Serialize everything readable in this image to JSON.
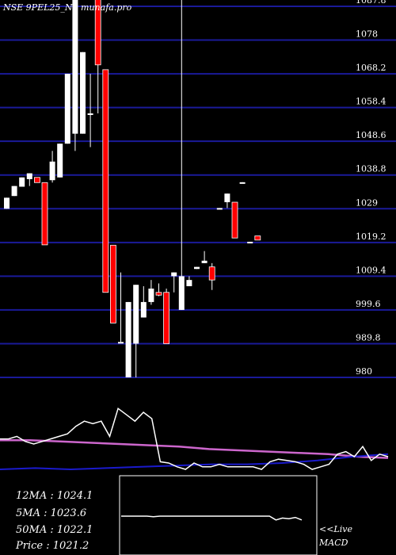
{
  "chart_data": {
    "type": "candlestick",
    "title": "NSE 9PEL25_N0 munafa.pro",
    "y_ticks": [
      "1087.8",
      "1078",
      "1068.2",
      "1058.4",
      "1048.6",
      "1038.8",
      "1029",
      "1019.2",
      "1009.4",
      "999.6",
      "989.8",
      "980"
    ],
    "ylim": [
      980,
      1087.8
    ],
    "grid": true,
    "candles": [
      {
        "o": 1029.0,
        "c": 1032.2,
        "h": 1032.2,
        "l": 1029.0
      },
      {
        "o": 1032.7,
        "c": 1035.6,
        "h": 1035.6,
        "l": 1032.7
      },
      {
        "o": 1035.4,
        "c": 1038.1,
        "h": 1038.1,
        "l": 1035.4
      },
      {
        "o": 1037.6,
        "c": 1039.3,
        "h": 1039.3,
        "l": 1035.6
      },
      {
        "o": 1038.1,
        "c": 1036.6,
        "h": 1038.1,
        "l": 1036.6
      },
      {
        "o": 1036.6,
        "c": 1018.5,
        "h": 1036.6,
        "l": 1018.5
      },
      {
        "o": 1037.3,
        "c": 1042.7,
        "h": 1045.8,
        "l": 1036.6
      },
      {
        "o": 1038.1,
        "c": 1047.9,
        "h": 1047.9,
        "l": 1038.1
      },
      {
        "o": 1047.9,
        "c": 1068.2,
        "h": 1068.2,
        "l": 1047.9
      },
      {
        "o": 1050.8,
        "c": 1090.0,
        "h": 1090.0,
        "l": 1045.8
      },
      {
        "o": 1050.8,
        "c": 1074.5,
        "h": 1074.5,
        "l": 1050.8
      },
      {
        "o": 1056.7,
        "c": 1056.7,
        "h": 1068.2,
        "l": 1046.9
      },
      {
        "o": 1090.0,
        "c": 1070.8,
        "h": 1090.0,
        "l": 1056.7
      },
      {
        "o": 1069.4,
        "c": 1004.7,
        "h": 1069.4,
        "l": 1004.7
      },
      {
        "o": 1018.4,
        "c": 995.8,
        "h": 1018.4,
        "l": 995.8
      },
      {
        "o": 990.3,
        "c": 990.3,
        "h": 1010.5,
        "l": 990.3
      },
      {
        "o": 980.0,
        "c": 1001.9,
        "h": 1001.9,
        "l": 980.0
      },
      {
        "o": 989.8,
        "c": 1006.9,
        "h": 1006.9,
        "l": 980.0
      },
      {
        "o": 997.4,
        "c": 1001.9,
        "h": 1006.5,
        "l": 997.4
      },
      {
        "o": 1001.9,
        "c": 1005.8,
        "h": 1008.3,
        "l": 1001.1
      },
      {
        "o": 1004.7,
        "c": 1003.9,
        "h": 1007.3,
        "l": 1003.6
      },
      {
        "o": 1004.7,
        "c": 989.8,
        "h": 1005.8,
        "l": 989.8
      },
      {
        "o": 1009.4,
        "c": 1010.5,
        "h": 1010.5,
        "l": 1004.7
      },
      {
        "o": 999.6,
        "c": 1009.4,
        "h": 1090.0,
        "l": 999.6
      },
      {
        "o": 1006.5,
        "c": 1008.3,
        "h": 1009.4,
        "l": 1006.5
      },
      {
        "o": 1011.5,
        "c": 1012.1,
        "h": 1012.1,
        "l": 1011.5
      },
      {
        "o": 1013.2,
        "c": 1013.9,
        "h": 1016.7,
        "l": 1013.2
      },
      {
        "o": 1012.1,
        "c": 1008.3,
        "h": 1013.2,
        "l": 1005.4
      },
      {
        "o": 1029.0,
        "c": 1029.2,
        "h": 1029.2,
        "l": 1029.0
      },
      {
        "o": 1030.9,
        "c": 1033.4,
        "h": 1033.4,
        "l": 1029.2
      },
      {
        "o": 1030.9,
        "c": 1020.5,
        "h": 1030.9,
        "l": 1020.5
      },
      {
        "o": 1036.6,
        "c": 1036.7,
        "h": 1036.7,
        "l": 1036.6
      },
      {
        "o": 1019.2,
        "c": 1019.4,
        "h": 1019.4,
        "l": 1019.2
      },
      {
        "o": 1021.1,
        "c": 1019.9,
        "h": 1021.1,
        "l": 1019.9
      }
    ],
    "legend": [
      {
        "label": "12MA",
        "value": "1024.1"
      },
      {
        "label": "5MA",
        "value": "1023.6"
      },
      {
        "label": "50MA",
        "value": "1022.1"
      },
      {
        "label": "Price",
        "value": "1021.2"
      }
    ],
    "macd_label": "<<Live MACD",
    "indicator_white": [
      0.24,
      0.24,
      0.26,
      0.22,
      0.2,
      0.22,
      0.24,
      0.26,
      0.28,
      0.34,
      0.38,
      0.36,
      0.38,
      0.26,
      0.48,
      0.43,
      0.38,
      0.45,
      0.4,
      0.06,
      0.05,
      0.02,
      0.0,
      0.05,
      0.02,
      0.02,
      0.04,
      0.02,
      0.02,
      0.02,
      0.02,
      0.0,
      0.06,
      0.08,
      0.07,
      0.06,
      0.04,
      0.0,
      0.02,
      0.04,
      0.12,
      0.14,
      0.1,
      0.18,
      0.07,
      0.12,
      0.1
    ],
    "indicator_magenta": [
      0.23,
      0.23,
      0.22,
      0.21,
      0.2,
      0.19,
      0.18,
      0.16,
      0.15,
      0.14,
      0.13,
      0.12,
      0.1,
      0.09
    ],
    "indicator_blue": [
      0.0,
      0.01,
      0.0,
      0.01,
      0.02,
      0.03,
      0.04,
      0.04,
      0.05,
      0.07,
      0.1,
      0.12
    ],
    "macd_line": [
      0.0,
      0.0,
      0.0,
      0.0,
      0.0,
      -0.02,
      0.0,
      0.0,
      0.0,
      0.0,
      0.0,
      0.0,
      0.0,
      0.0,
      0.0,
      0.0,
      0.0,
      0.0,
      0.0,
      0.0,
      0.0,
      0.0,
      0.0,
      0.0,
      -0.12,
      -0.06,
      -0.08,
      -0.04,
      -0.12
    ]
  }
}
